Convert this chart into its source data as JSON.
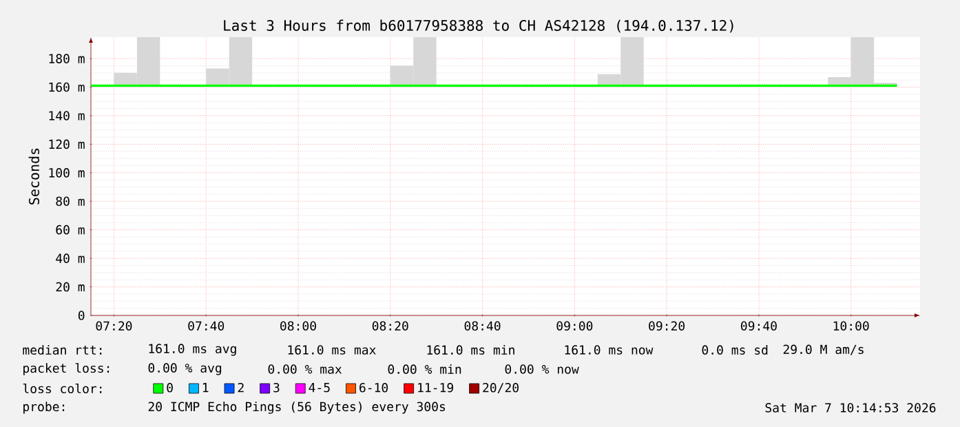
{
  "chart_data": {
    "type": "line",
    "title": "Last 3 Hours from b60177958388 to CH AS42128 (194.0.137.12)",
    "ylabel": "Seconds",
    "legend_title": "loss color:",
    "xlim": [
      7.25,
      10.25
    ],
    "xticks": [
      {
        "value": 7.3333,
        "label": "07:20"
      },
      {
        "value": 7.6667,
        "label": "07:40"
      },
      {
        "value": 8,
        "label": "08:00"
      },
      {
        "value": 8.3333,
        "label": "08:20"
      },
      {
        "value": 8.6667,
        "label": "08:40"
      },
      {
        "value": 9,
        "label": "09:00"
      },
      {
        "value": 9.3333,
        "label": "09:20"
      },
      {
        "value": 9.6667,
        "label": "09:40"
      },
      {
        "value": 10,
        "label": "10:00"
      }
    ],
    "ylim": [
      0,
      195
    ],
    "yticks": [
      0,
      {
        "value": 20,
        "label": "20 m"
      },
      {
        "value": 40,
        "label": "40 m"
      },
      {
        "value": 60,
        "label": "60 m"
      },
      {
        "value": 80,
        "label": "80 m"
      },
      {
        "value": 100,
        "label": "100 m"
      },
      {
        "value": 120,
        "label": "120 m"
      },
      {
        "value": 140,
        "label": "140 m"
      },
      {
        "value": 160,
        "label": "160 m"
      },
      {
        "value": 180,
        "label": "180 m"
      }
    ],
    "grid": true,
    "legend": "bottom",
    "marker": "none",
    "line_style": "solid",
    "series": [
      {
        "type": "bar",
        "color": "#d7d7d7",
        "x": [
          7.375,
          7.4583,
          7.7083,
          7.7917,
          8.375,
          8.4583,
          9.125,
          9.2083,
          9.9583,
          10.0417,
          10.125
        ],
        "base": [
          161,
          161,
          161,
          161,
          161,
          161,
          161,
          161,
          161,
          161,
          161
        ],
        "values": [
          9,
          34,
          12,
          34,
          14,
          34,
          8,
          34,
          6,
          34,
          2
        ]
      },
      {
        "name": "0",
        "color": "#00ff00",
        "x": [
          7.25,
          10.1667
        ],
        "values": [
          161,
          161
        ]
      },
      {
        "name": "1",
        "color": "#00b8ff"
      },
      {
        "name": "2",
        "color": "#0059ff"
      },
      {
        "name": "3",
        "color": "#7e00ff"
      },
      {
        "name": "4-5",
        "color": "#ff00ff"
      },
      {
        "name": "6-10",
        "color": "#ff5500"
      },
      {
        "name": "11-19",
        "color": "#ff0000"
      },
      {
        "name": "20/20",
        "color": "#a10000"
      }
    ],
    "annotations": [
      "median rtt:",
      "161.0 ms avg",
      "161.0 ms max",
      "161.0 ms min",
      "161.0 ms now",
      "0.0 ms sd",
      "29.0 M am/s",
      "packet loss:",
      "0.00 % avg",
      "0.00 % max",
      "0.00 % min",
      "0.00 % now",
      "probe:",
      "20 ICMP Echo Pings (56 Bytes) every 300s",
      "Sat Mar  7 10:14:53 2026"
    ]
  }
}
